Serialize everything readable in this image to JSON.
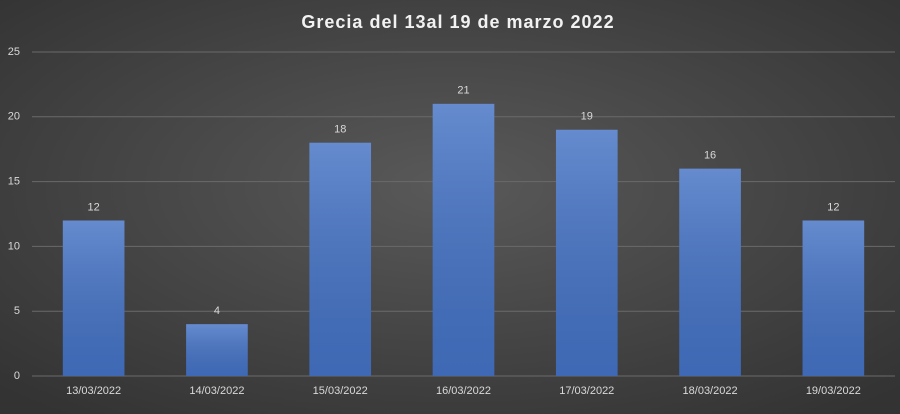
{
  "chart_data": {
    "type": "bar",
    "title": "Grecia del 13al 19 de marzo 2022",
    "categories": [
      "13/03/2022",
      "14/03/2022",
      "15/03/2022",
      "16/03/2022",
      "17/03/2022",
      "18/03/2022",
      "19/03/2022"
    ],
    "values": [
      12,
      4,
      18,
      21,
      19,
      16,
      12
    ],
    "color": "#4472c4",
    "ylim": [
      0,
      25
    ],
    "yticks": [
      0,
      5,
      10,
      15,
      20,
      25
    ],
    "grid": true
  }
}
